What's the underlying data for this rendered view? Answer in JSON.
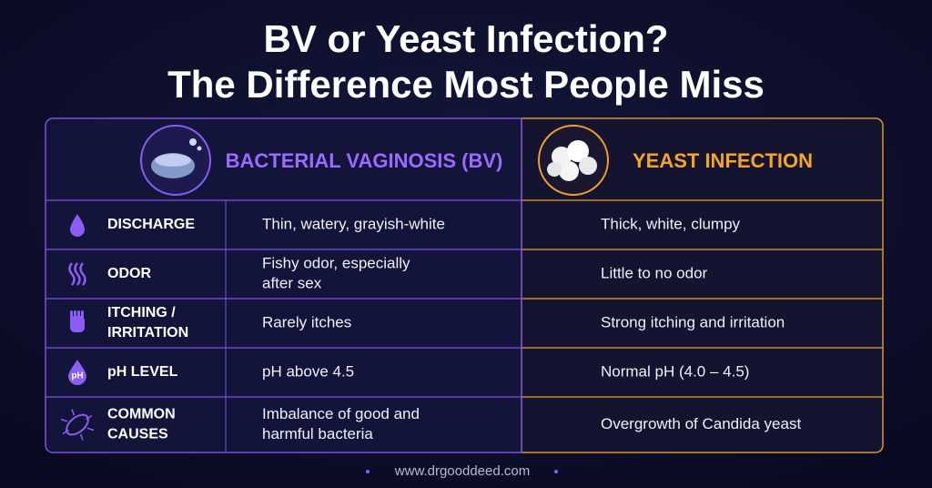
{
  "title": {
    "lines": [
      "BV or Yeast Infection?",
      "The Difference Most People Miss"
    ]
  },
  "columns": {
    "bv": "BACTERIAL VAGINOSIS (BV)",
    "yeast": "YEAST INFECTION"
  },
  "rows": [
    {
      "label": [
        "DISCHARGE"
      ],
      "bv": [
        "Thin, watery, grayish-white"
      ],
      "yeast": [
        "Thick, white, clumpy"
      ]
    },
    {
      "label": [
        "ODOR"
      ],
      "bv": [
        "Fishy odor, especially",
        "after sex"
      ],
      "yeast": [
        "Little to no odor"
      ]
    },
    {
      "label": [
        "ITCHING /",
        "IRRITATION"
      ],
      "bv": [
        "Rarely itches"
      ],
      "yeast": [
        "Strong itching and irritation"
      ]
    },
    {
      "label": [
        "pH LEVEL"
      ],
      "icon_text": "pH",
      "bv": [
        "pH above 4.5"
      ],
      "yeast": [
        "Normal pH (4.0 – 4.5)"
      ]
    },
    {
      "label": [
        "COMMON",
        "CAUSES"
      ],
      "bv": [
        "Imbalance of good and",
        "harmful bacteria"
      ],
      "yeast": [
        "Overgrowth of Candida yeast"
      ]
    }
  ],
  "footer": "www.drgooddeed.com"
}
